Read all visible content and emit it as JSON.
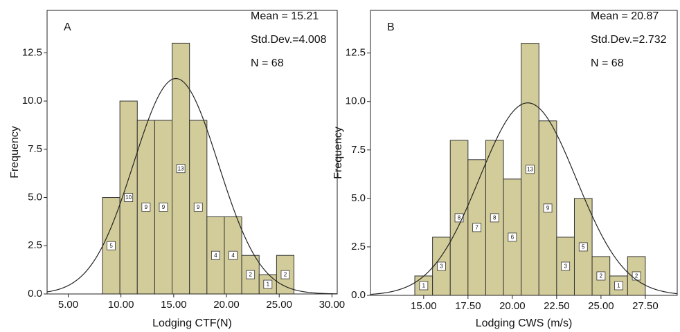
{
  "chart_data": [
    {
      "type": "histogram",
      "label": "A",
      "x_label": "Lodging CTF(N)",
      "y_label": "Frequency",
      "annotations": [
        "Mean = 15.21",
        "Std.Dev.=4.008",
        "N = 68"
      ],
      "normal": {
        "mean": 15.21,
        "sd": 4.008,
        "n": 68
      },
      "bins": [
        8.25,
        9.9,
        11.55,
        13.2,
        14.85,
        16.5,
        18.15,
        19.8,
        21.45,
        23.1,
        24.75,
        26.4
      ],
      "values": [
        5,
        10,
        9,
        9,
        13,
        9,
        4,
        4,
        2,
        1,
        2
      ],
      "color": "#d2cc9a",
      "xlim": [
        3,
        30.5
      ],
      "xticks": [
        {
          "value": 5,
          "label": "5.00"
        },
        {
          "value": 10,
          "label": "10.00"
        },
        {
          "value": 15,
          "label": "15.00"
        },
        {
          "value": 20,
          "label": "20.00"
        },
        {
          "value": 25,
          "label": "25.00"
        },
        {
          "value": 30,
          "label": "30.00"
        }
      ],
      "ylim": [
        0,
        14.7
      ],
      "yticks": [
        {
          "value": 0,
          "label": "0.0"
        },
        2.5,
        {
          "value": 5,
          "label": "5.0"
        },
        7.5,
        {
          "value": 10,
          "label": "10.0"
        },
        12.5
      ]
    },
    {
      "type": "histogram",
      "label": "B",
      "x_label": "Lodging CWS (m/s)",
      "y_label": "Frequency",
      "annotations": [
        "Mean = 20.87",
        "Std.Dev.=2.732",
        "N = 68"
      ],
      "normal": {
        "mean": 20.87,
        "sd": 2.732,
        "n": 68
      },
      "bins": [
        14.5,
        15.5,
        16.5,
        17.5,
        18.5,
        19.5,
        20.5,
        21.5,
        22.5,
        23.5,
        24.5,
        25.5,
        26.5,
        27.5
      ],
      "values": [
        1,
        3,
        8,
        7,
        8,
        6,
        13,
        9,
        3,
        5,
        2,
        1,
        2
      ],
      "color": "#d2cc9a",
      "xlim": [
        12,
        29.3
      ],
      "xticks": [
        {
          "value": 15,
          "label": "15.00"
        },
        {
          "value": 17.5,
          "label": "17.50"
        },
        {
          "value": 20,
          "label": "20.00"
        },
        {
          "value": 22.5,
          "label": "22.50"
        },
        {
          "value": 25,
          "label": "25.00"
        },
        {
          "value": 27.5,
          "label": "27.50"
        }
      ],
      "ylim": [
        0,
        14.7
      ],
      "yticks": [
        {
          "value": 0,
          "label": "0.0"
        },
        2.5,
        {
          "value": 5,
          "label": "5.0"
        },
        7.5,
        {
          "value": 10,
          "label": "10.0"
        },
        12.5
      ]
    }
  ]
}
